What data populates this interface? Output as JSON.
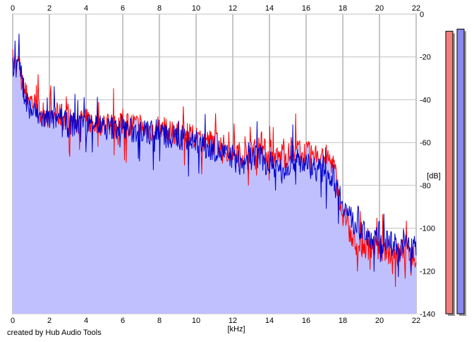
{
  "footer": {
    "credit": "created by Hub Audio Tools"
  },
  "chart_data": {
    "type": "area",
    "xlabel": "[kHz]",
    "ylabel": "[dB]",
    "xlim": [
      0,
      22
    ],
    "ylim": [
      -140,
      0
    ],
    "x_ticks": [
      "0",
      "2",
      "4",
      "6",
      "8",
      "10",
      "12",
      "14",
      "16",
      "18",
      "20",
      "22"
    ],
    "y_ticks": [
      "0",
      "-20",
      "-40",
      "-60",
      "-80",
      "-100",
      "-120",
      "-140"
    ],
    "grid": true,
    "colors": {
      "fill": "#c0c0ff",
      "left": "#ff0000",
      "right": "#0000cc",
      "meter_left": "#f08080",
      "meter_right": "#8888ee"
    },
    "series": [
      {
        "values_khz": [
          0,
          0.1,
          0.2,
          0.35,
          0.5,
          0.75,
          1,
          1.5,
          2,
          2.5,
          3,
          3.5,
          4,
          4.5,
          5,
          5.5,
          6,
          6.5,
          7,
          7.5,
          8,
          8.5,
          9,
          9.5,
          10,
          10.5,
          11,
          11.5,
          12,
          12.5,
          13,
          13.5,
          14,
          14.5,
          15,
          15.5,
          16,
          16.5,
          17,
          17.5,
          18,
          18.2,
          18.5,
          19,
          19.5,
          20,
          20.5,
          21,
          21.5,
          22
        ],
        "db": [
          -25,
          -23,
          -28,
          -24,
          -33,
          -38,
          -40,
          -45,
          -48,
          -47,
          -50,
          -49,
          -50,
          -51,
          -51,
          -52,
          -52,
          -51,
          -53,
          -54,
          -54,
          -55,
          -56,
          -57,
          -58,
          -59,
          -60,
          -62,
          -64,
          -66,
          -63,
          -62,
          -66,
          -67,
          -66,
          -63,
          -65,
          -66,
          -66,
          -70,
          -95,
          -98,
          -106,
          -108,
          -109,
          -110,
          -111,
          -112,
          -112,
          -114
        ]
      },
      {
        "values_khz": [
          0,
          0.1,
          0.2,
          0.35,
          0.5,
          0.75,
          1,
          1.5,
          2,
          2.5,
          3,
          3.5,
          4,
          4.5,
          5,
          5.5,
          6,
          6.5,
          7,
          7.5,
          8,
          8.5,
          9,
          9.5,
          10,
          10.5,
          11,
          11.5,
          12,
          12.5,
          13,
          13.5,
          14,
          14.5,
          15,
          15.5,
          16,
          16.5,
          17,
          17.5,
          18,
          18.2,
          18.5,
          19,
          19.5,
          20,
          20.5,
          21,
          21.5,
          22
        ],
        "db": [
          -24,
          -22,
          -26,
          -20,
          -32,
          -40,
          -45,
          -48,
          -50,
          -48,
          -52,
          -51,
          -52,
          -50,
          -54,
          -53,
          -52,
          -55,
          -54,
          -56,
          -55,
          -58,
          -57,
          -59,
          -60,
          -62,
          -63,
          -65,
          -68,
          -70,
          -67,
          -66,
          -70,
          -72,
          -70,
          -68,
          -70,
          -72,
          -74,
          -76,
          -88,
          -92,
          -96,
          -101,
          -104,
          -106,
          -107,
          -108,
          -108,
          -110
        ]
      }
    ],
    "meters_db": [
      -8,
      -7
    ]
  }
}
